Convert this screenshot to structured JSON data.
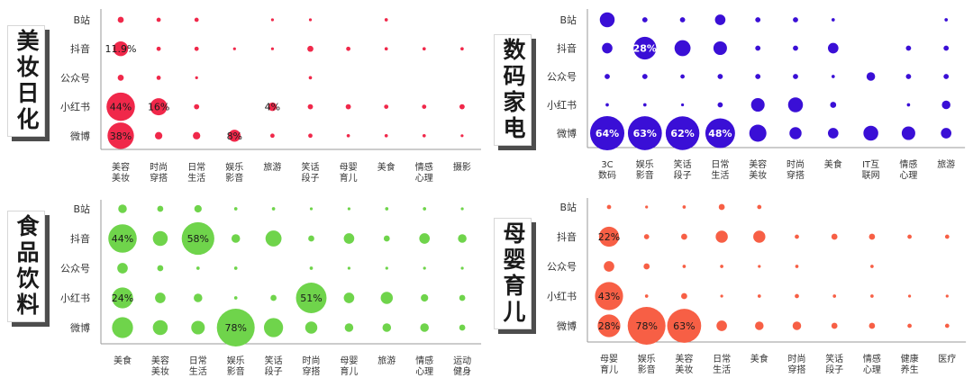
{
  "chart_data": [
    {
      "type": "scatter",
      "title": "美妆日化",
      "color": "#f0284a",
      "label_color": "#1a1a1a",
      "y_categories": [
        "B站",
        "抖音",
        "公众号",
        "小红书",
        "微博"
      ],
      "x_categories": [
        [
          "美容",
          "美妆"
        ],
        [
          "时尚",
          "穿搭"
        ],
        [
          "日常",
          "生活"
        ],
        [
          "娱乐",
          "影音"
        ],
        [
          "旅游"
        ],
        [
          "笑话",
          "段子"
        ],
        [
          "母婴",
          "育儿"
        ],
        [
          "美食"
        ],
        [
          "情感",
          "心理"
        ],
        [
          "摄影"
        ]
      ],
      "values": [
        [
          2,
          1,
          1,
          0,
          0.3,
          0.3,
          0,
          0.6,
          0,
          0
        ],
        [
          11.9,
          1,
          1,
          0.3,
          0.3,
          2,
          1,
          0.6,
          0.6,
          0.6
        ],
        [
          2,
          1,
          0.3,
          0,
          0,
          0.6,
          0,
          0,
          0,
          0
        ],
        [
          44,
          16,
          1.5,
          0,
          4,
          1.5,
          1.5,
          1,
          1,
          1.5
        ],
        [
          38,
          3,
          3,
          8,
          1,
          1,
          0.6,
          0.6,
          0.6,
          0.3
        ]
      ],
      "data_labels": [
        [
          "",
          "",
          "",
          "",
          "",
          "",
          "",
          "",
          "",
          ""
        ],
        [
          "11.9%",
          "",
          "",
          "",
          "",
          "",
          "",
          "",
          "",
          ""
        ],
        [
          "",
          "",
          "",
          "",
          "",
          "",
          "",
          "",
          "",
          ""
        ],
        [
          "44%",
          "16%",
          "",
          "",
          "4%",
          "",
          "",
          "",
          "",
          ""
        ],
        [
          "38%",
          "",
          "",
          "8%",
          "",
          "",
          "",
          "",
          "",
          ""
        ]
      ]
    },
    {
      "type": "scatter",
      "title": "数码家电",
      "color": "#3a0fd6",
      "label_color": "#ffffff",
      "y_categories": [
        "B站",
        "抖音",
        "公众号",
        "小红书",
        "微博"
      ],
      "x_categories": [
        [
          "3C",
          "数码"
        ],
        [
          "娱乐",
          "影音"
        ],
        [
          "笑话",
          "段子"
        ],
        [
          "日常",
          "生活"
        ],
        [
          "美容",
          "美妆"
        ],
        [
          "时尚",
          "穿搭"
        ],
        [
          "美食"
        ],
        [
          "IT互",
          "联网"
        ],
        [
          "情感",
          "心理"
        ],
        [
          "旅游"
        ]
      ],
      "values": [
        [
          12,
          1.5,
          1.5,
          6,
          1.5,
          1.5,
          0.6,
          0,
          0,
          0.6
        ],
        [
          6,
          28,
          14,
          10,
          1.5,
          1.5,
          6,
          0,
          1.5,
          1.5
        ],
        [
          1.5,
          1.5,
          1,
          1.5,
          1.5,
          1.5,
          0.6,
          4,
          1.5,
          1.5
        ],
        [
          0.6,
          0.6,
          0.3,
          1.5,
          10,
          12,
          2,
          0,
          0.6,
          4
        ],
        [
          64,
          63,
          62,
          48,
          16,
          8,
          6,
          12,
          10,
          6
        ]
      ],
      "data_labels": [
        [
          "",
          "",
          "",
          "",
          "",
          "",
          "",
          "",
          "",
          ""
        ],
        [
          "",
          "28%",
          "",
          "",
          "",
          "",
          "",
          "",
          "",
          ""
        ],
        [
          "",
          "",
          "",
          "",
          "",
          "",
          "",
          "",
          "",
          ""
        ],
        [
          "",
          "",
          "",
          "",
          "",
          "",
          "",
          "",
          "",
          ""
        ],
        [
          "64%",
          "63%",
          "62%",
          "48%",
          "",
          "",
          "",
          "",
          "",
          ""
        ]
      ]
    },
    {
      "type": "scatter",
      "title": "食品饮料",
      "color": "#6fd44b",
      "label_color": "#1a1a1a",
      "y_categories": [
        "B站",
        "抖音",
        "公众号",
        "小红书",
        "微博"
      ],
      "x_categories": [
        [
          "美食"
        ],
        [
          "美容",
          "美妆"
        ],
        [
          "日常",
          "生活"
        ],
        [
          "娱乐",
          "影音"
        ],
        [
          "笑话",
          "段子"
        ],
        [
          "时尚",
          "穿搭"
        ],
        [
          "母婴",
          "育儿"
        ],
        [
          "旅游"
        ],
        [
          "情感",
          "心理"
        ],
        [
          "运动",
          "健身"
        ]
      ],
      "values": [
        [
          4,
          2,
          3,
          0.6,
          0.6,
          0.3,
          0.3,
          0.6,
          0.6,
          0.3
        ],
        [
          44,
          12,
          58,
          4,
          14,
          2,
          6,
          2,
          6,
          4
        ],
        [
          6,
          2,
          0.6,
          0.6,
          0,
          0.6,
          0.3,
          0.3,
          0.3,
          0.3
        ],
        [
          24,
          6,
          4,
          0.6,
          2,
          51,
          6,
          8,
          3,
          2
        ],
        [
          24,
          12,
          10,
          78,
          20,
          8,
          4,
          4,
          4,
          2
        ]
      ],
      "data_labels": [
        [
          "",
          "",
          "",
          "",
          "",
          "",
          "",
          "",
          "",
          ""
        ],
        [
          "44%",
          "",
          "58%",
          "",
          "",
          "",
          "",
          "",
          "",
          ""
        ],
        [
          "",
          "",
          "",
          "",
          "",
          "",
          "",
          "",
          "",
          ""
        ],
        [
          "24%",
          "",
          "",
          "",
          "",
          "51%",
          "",
          "",
          "",
          ""
        ],
        [
          "",
          "",
          "",
          "78%",
          "",
          "",
          "",
          "",
          "",
          ""
        ]
      ]
    },
    {
      "type": "scatter",
      "title": "母婴育儿",
      "color": "#f75f45",
      "label_color": "#1a1a1a",
      "y_categories": [
        "B站",
        "抖音",
        "公众号",
        "小红书",
        "微博"
      ],
      "x_categories": [
        [
          "母婴",
          "育儿"
        ],
        [
          "娱乐",
          "影音"
        ],
        [
          "美容",
          "美妆"
        ],
        [
          "日常",
          "生活"
        ],
        [
          "美食"
        ],
        [
          "时尚",
          "穿搭"
        ],
        [
          "笑话",
          "段子"
        ],
        [
          "情感",
          "心理"
        ],
        [
          "健康",
          "养生"
        ],
        [
          "医疗"
        ]
      ],
      "values": [
        [
          1,
          0.3,
          0.6,
          2,
          1,
          0,
          0,
          0,
          0,
          0
        ],
        [
          22,
          1.5,
          2,
          8,
          8,
          1,
          2,
          2,
          1,
          1
        ],
        [
          6,
          2,
          0.6,
          0.6,
          0.3,
          0.6,
          0,
          0.6,
          0,
          0
        ],
        [
          43,
          0.6,
          2,
          0.3,
          0.6,
          1,
          0.6,
          0.6,
          0.3,
          0.3
        ],
        [
          28,
          78,
          63,
          6,
          4,
          4,
          2,
          2,
          1,
          1
        ]
      ],
      "data_labels": [
        [
          "",
          "",
          "",
          "",
          "",
          "",
          "",
          "",
          "",
          ""
        ],
        [
          "22%",
          "",
          "",
          "",
          "",
          "",
          "",
          "",
          "",
          ""
        ],
        [
          "",
          "",
          "",
          "",
          "",
          "",
          "",
          "",
          "",
          ""
        ],
        [
          "43%",
          "",
          "",
          "",
          "",
          "",
          "",
          "",
          "",
          ""
        ],
        [
          "28%",
          "78%",
          "63%",
          "",
          "",
          "",
          "",
          "",
          "",
          ""
        ]
      ]
    }
  ]
}
